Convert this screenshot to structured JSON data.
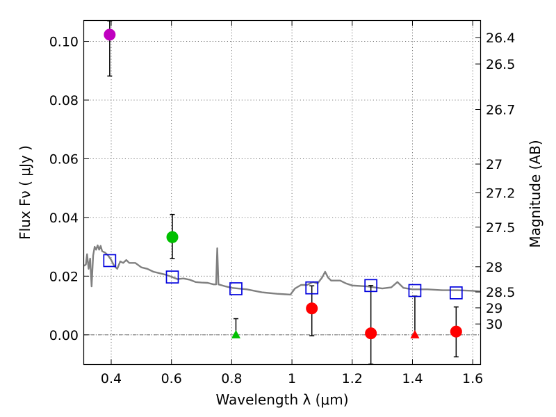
{
  "chart_data": {
    "type": "scatter",
    "xlabel": "Wavelength  λ (μm)",
    "ylabel": "Flux  Fν  ( μJy )",
    "y2label": "Magnitude (AB)",
    "xlim": [
      0.31,
      1.625
    ],
    "ylim": [
      -0.01,
      0.107
    ],
    "grid": true,
    "x_ticks": [
      0.4,
      0.6,
      0.8,
      1.0,
      1.2,
      1.4,
      1.6
    ],
    "x_tick_labels": [
      "0.4",
      "0.6",
      "0.8",
      "1",
      "1.2",
      "1.4",
      "1.6"
    ],
    "y_ticks": [
      0.0,
      0.02,
      0.04,
      0.06,
      0.08,
      0.1
    ],
    "y_tick_labels": [
      "0.00",
      "0.02",
      "0.04",
      "0.06",
      "0.08",
      "0.10"
    ],
    "magnitude_ticks": [
      {
        "label": "26.4",
        "flux": 0.1013
      },
      {
        "label": "26.5",
        "flux": 0.0923
      },
      {
        "label": "26.7",
        "flux": 0.0768
      },
      {
        "label": "27",
        "flux": 0.0582
      },
      {
        "label": "27.2",
        "flux": 0.0484
      },
      {
        "label": "27.5",
        "flux": 0.0367
      },
      {
        "label": "28",
        "flux": 0.0232
      },
      {
        "label": "28.5",
        "flux": 0.0146
      },
      {
        "label": "29",
        "flux": 0.0092
      },
      {
        "label": "30",
        "flux": 0.0037
      }
    ],
    "series": [
      {
        "marker": "circle",
        "color": "#bf00bf",
        "points": [
          {
            "x": 0.395,
            "y": 0.1023,
            "yerr_low": 0.0882,
            "yerr_high": 0.107
          }
        ]
      },
      {
        "marker": "circle",
        "color": "#00c000",
        "points": [
          {
            "x": 0.603,
            "y": 0.0333,
            "yerr_low": 0.026,
            "yerr_high": 0.041
          }
        ]
      },
      {
        "marker": "triangle",
        "color": "#00c000",
        "points": [
          {
            "x": 0.814,
            "y": 0.0,
            "yerr_low": 0.0,
            "yerr_high": 0.0055
          }
        ]
      },
      {
        "marker": "circle",
        "color": "#ff0000",
        "points": [
          {
            "x": 1.066,
            "y": 0.009,
            "yerr_low": -0.0003,
            "yerr_high": 0.0167
          },
          {
            "x": 1.262,
            "y": 0.0005,
            "yerr_low": -0.01,
            "yerr_high": 0.0168
          },
          {
            "x": 1.545,
            "y": 0.0011,
            "yerr_low": -0.0075,
            "yerr_high": 0.0095
          }
        ]
      },
      {
        "marker": "triangle",
        "color": "#ff0000",
        "points": [
          {
            "x": 1.408,
            "y": 0.0,
            "yerr_low": 0.0,
            "yerr_high": 0.0132
          }
        ]
      },
      {
        "marker": "open-square",
        "color": "#0000dd",
        "points": [
          {
            "x": 0.395,
            "y": 0.0253
          },
          {
            "x": 0.603,
            "y": 0.0197
          },
          {
            "x": 0.814,
            "y": 0.0157
          },
          {
            "x": 1.066,
            "y": 0.016
          },
          {
            "x": 1.262,
            "y": 0.0168
          },
          {
            "x": 1.408,
            "y": 0.0151
          },
          {
            "x": 1.545,
            "y": 0.0143
          }
        ]
      },
      {
        "marker": "line",
        "color": "#808080",
        "points": [
          {
            "x": 0.31,
            "y": 0.0235
          },
          {
            "x": 0.316,
            "y": 0.024
          },
          {
            "x": 0.32,
            "y": 0.0275
          },
          {
            "x": 0.325,
            "y": 0.0225
          },
          {
            "x": 0.33,
            "y": 0.026
          },
          {
            "x": 0.335,
            "y": 0.0165
          },
          {
            "x": 0.34,
            "y": 0.027
          },
          {
            "x": 0.345,
            "y": 0.03
          },
          {
            "x": 0.35,
            "y": 0.029
          },
          {
            "x": 0.355,
            "y": 0.0305
          },
          {
            "x": 0.36,
            "y": 0.029
          },
          {
            "x": 0.365,
            "y": 0.0303
          },
          {
            "x": 0.37,
            "y": 0.0285
          },
          {
            "x": 0.38,
            "y": 0.028
          },
          {
            "x": 0.39,
            "y": 0.027
          },
          {
            "x": 0.4,
            "y": 0.0255
          },
          {
            "x": 0.41,
            "y": 0.0235
          },
          {
            "x": 0.42,
            "y": 0.0225
          },
          {
            "x": 0.43,
            "y": 0.025
          },
          {
            "x": 0.44,
            "y": 0.0245
          },
          {
            "x": 0.45,
            "y": 0.0255
          },
          {
            "x": 0.46,
            "y": 0.0245
          },
          {
            "x": 0.48,
            "y": 0.0245
          },
          {
            "x": 0.5,
            "y": 0.023
          },
          {
            "x": 0.52,
            "y": 0.0225
          },
          {
            "x": 0.54,
            "y": 0.0215
          },
          {
            "x": 0.56,
            "y": 0.021
          },
          {
            "x": 0.58,
            "y": 0.0205
          },
          {
            "x": 0.6,
            "y": 0.0198
          },
          {
            "x": 0.62,
            "y": 0.019
          },
          {
            "x": 0.64,
            "y": 0.0192
          },
          {
            "x": 0.66,
            "y": 0.0188
          },
          {
            "x": 0.68,
            "y": 0.018
          },
          {
            "x": 0.7,
            "y": 0.0178
          },
          {
            "x": 0.72,
            "y": 0.0177
          },
          {
            "x": 0.74,
            "y": 0.0172
          },
          {
            "x": 0.748,
            "y": 0.0172
          },
          {
            "x": 0.752,
            "y": 0.0295
          },
          {
            "x": 0.756,
            "y": 0.0172
          },
          {
            "x": 0.78,
            "y": 0.0165
          },
          {
            "x": 0.8,
            "y": 0.016
          },
          {
            "x": 0.85,
            "y": 0.0155
          },
          {
            "x": 0.9,
            "y": 0.0145
          },
          {
            "x": 0.95,
            "y": 0.014
          },
          {
            "x": 0.98,
            "y": 0.0138
          },
          {
            "x": 0.995,
            "y": 0.0137
          },
          {
            "x": 1.01,
            "y": 0.0158
          },
          {
            "x": 1.03,
            "y": 0.017
          },
          {
            "x": 1.05,
            "y": 0.017
          },
          {
            "x": 1.07,
            "y": 0.018
          },
          {
            "x": 1.085,
            "y": 0.0175
          },
          {
            "x": 1.1,
            "y": 0.0195
          },
          {
            "x": 1.11,
            "y": 0.0215
          },
          {
            "x": 1.12,
            "y": 0.0195
          },
          {
            "x": 1.13,
            "y": 0.0185
          },
          {
            "x": 1.16,
            "y": 0.0185
          },
          {
            "x": 1.18,
            "y": 0.0175
          },
          {
            "x": 1.2,
            "y": 0.0168
          },
          {
            "x": 1.25,
            "y": 0.0165
          },
          {
            "x": 1.3,
            "y": 0.0158
          },
          {
            "x": 1.33,
            "y": 0.0162
          },
          {
            "x": 1.35,
            "y": 0.018
          },
          {
            "x": 1.37,
            "y": 0.016
          },
          {
            "x": 1.4,
            "y": 0.0155
          },
          {
            "x": 1.45,
            "y": 0.0155
          },
          {
            "x": 1.5,
            "y": 0.0152
          },
          {
            "x": 1.55,
            "y": 0.0152
          },
          {
            "x": 1.6,
            "y": 0.015
          },
          {
            "x": 1.625,
            "y": 0.0148
          }
        ]
      }
    ]
  }
}
